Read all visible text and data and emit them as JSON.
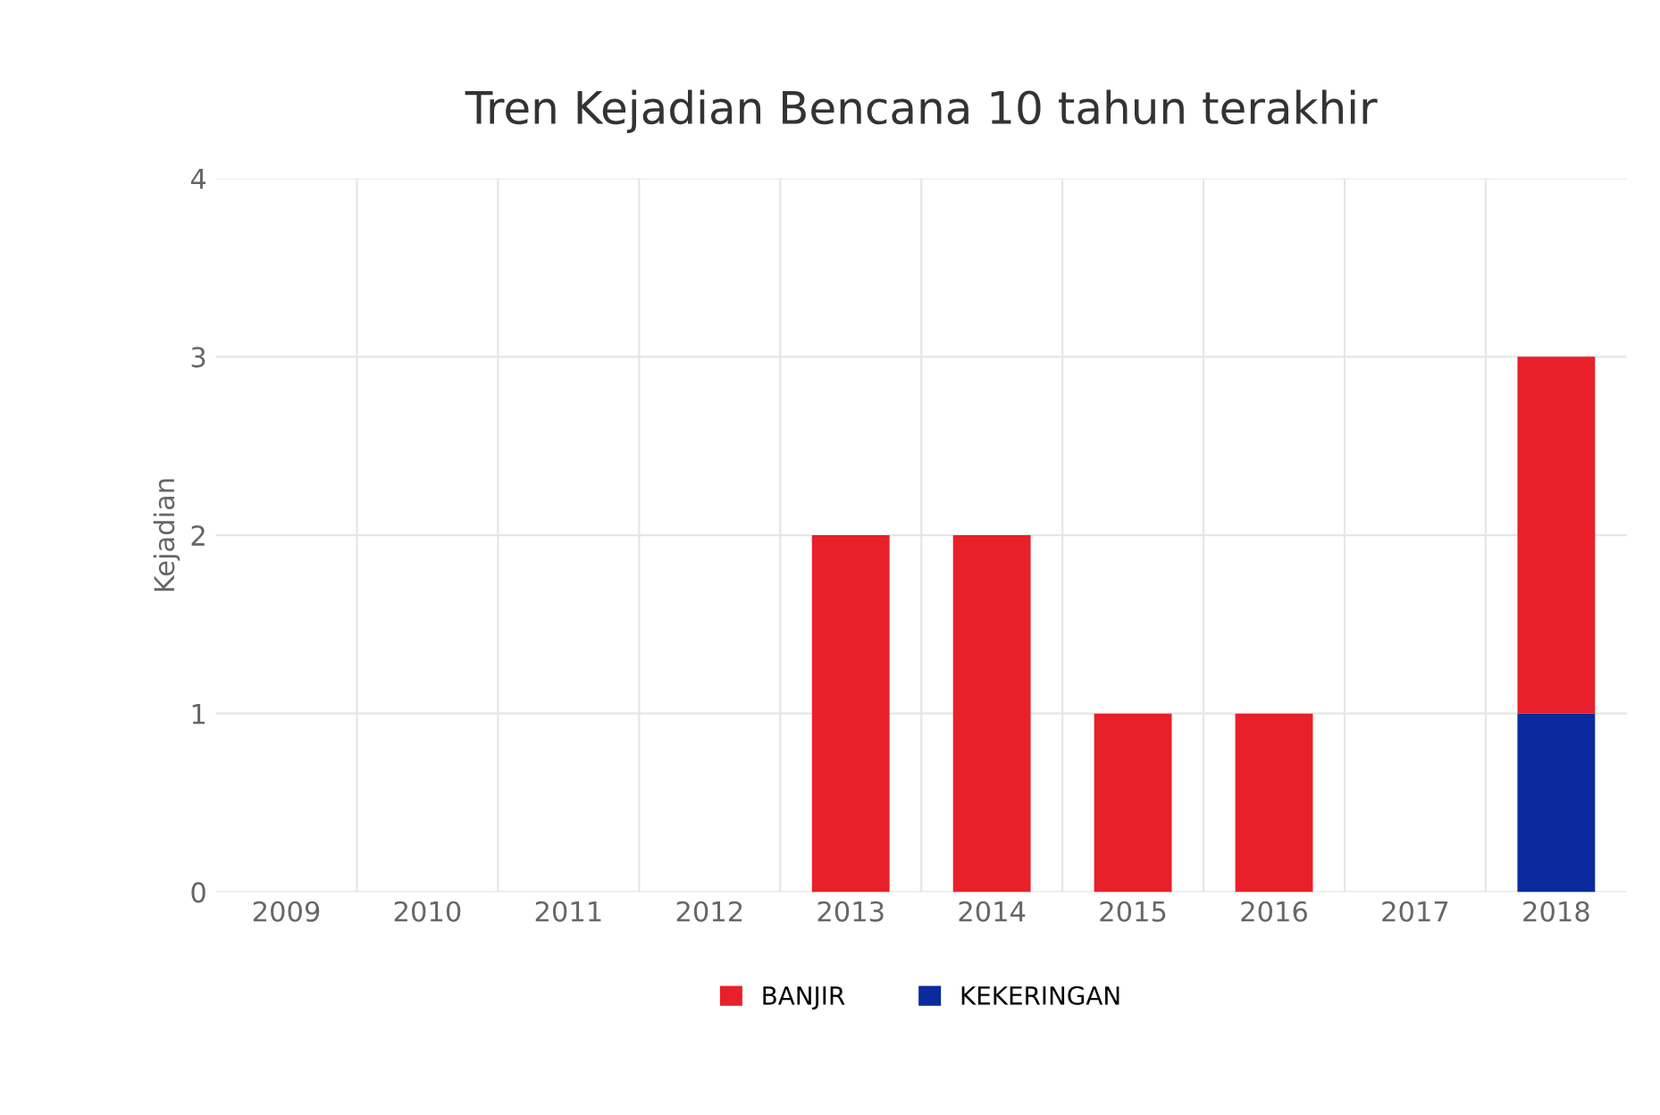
{
  "chart_data": {
    "type": "bar",
    "title": "Tren Kejadian Bencana 10 tahun terakhir",
    "ylabel": "Kejadian",
    "categories": [
      "2009",
      "2010",
      "2011",
      "2012",
      "2013",
      "2014",
      "2015",
      "2016",
      "2017",
      "2018"
    ],
    "series": [
      {
        "name": "KEKERINGAN",
        "color": "#0a2a9e",
        "values": [
          0,
          0,
          0,
          0,
          0,
          0,
          0,
          0,
          0,
          1
        ]
      },
      {
        "name": "BANJIR",
        "color": "#e8202a",
        "values": [
          0,
          0,
          0,
          0,
          2,
          2,
          1,
          1,
          0,
          2
        ]
      }
    ],
    "stacked": true,
    "ylim": [
      0,
      4
    ],
    "yticks": [
      0,
      1,
      2,
      3,
      4
    ],
    "grid": true,
    "legend": "bottom"
  }
}
